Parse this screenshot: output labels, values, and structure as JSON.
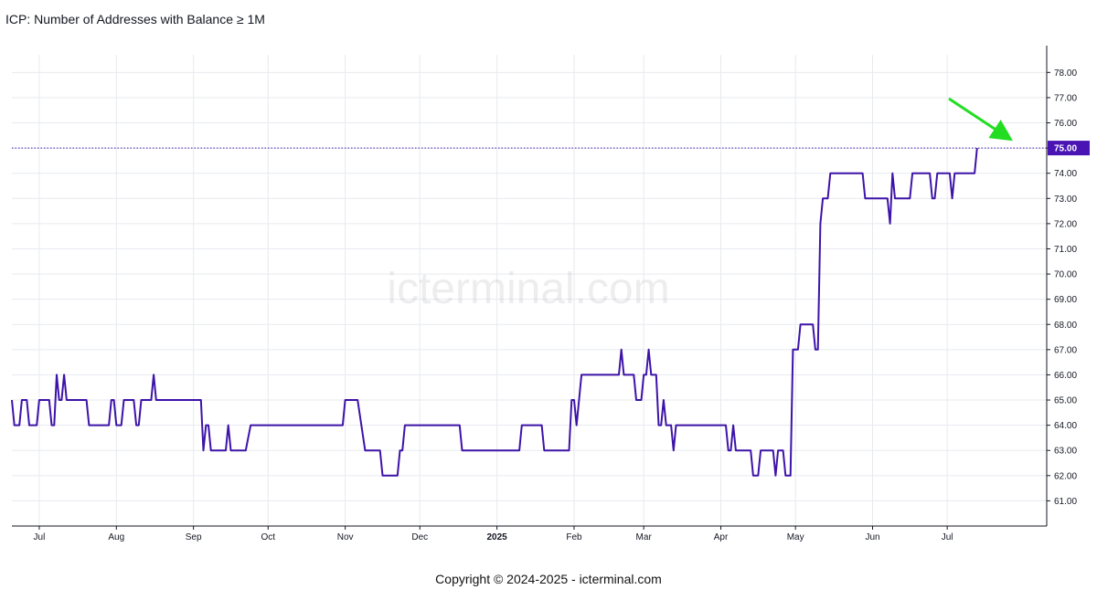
{
  "title": "ICP: Number of Addresses with Balance ≥ 1M",
  "copyright": "Copyright © 2024-2025 - icterminal.com",
  "watermark": "icterminal.com",
  "colors": {
    "line": "#3d13a8",
    "price_label_bg": "#4a14b5",
    "arrow": "#22dd22",
    "grid": "#e8eaef",
    "axis": "#131722"
  },
  "chart_data": {
    "type": "line",
    "title": "ICP: Number of Addresses with Balance ≥ 1M",
    "xlabel": "",
    "ylabel": "",
    "x_ticks": [
      {
        "date": "2024-07-01",
        "label": "Jul"
      },
      {
        "date": "2024-08-01",
        "label": "Aug"
      },
      {
        "date": "2024-09-01",
        "label": "Sep"
      },
      {
        "date": "2024-10-01",
        "label": "Oct"
      },
      {
        "date": "2024-11-01",
        "label": "Nov"
      },
      {
        "date": "2024-12-01",
        "label": "Dec"
      },
      {
        "date": "2025-01-01",
        "label": "2025",
        "bold": true
      },
      {
        "date": "2025-02-01",
        "label": "Feb"
      },
      {
        "date": "2025-03-01",
        "label": "Mar"
      },
      {
        "date": "2025-04-01",
        "label": "Apr"
      },
      {
        "date": "2025-05-01",
        "label": "May"
      },
      {
        "date": "2025-06-01",
        "label": "Jun"
      },
      {
        "date": "2025-07-01",
        "label": "Jul"
      }
    ],
    "y_ticks": [
      "61.00",
      "62.00",
      "63.00",
      "64.00",
      "65.00",
      "66.00",
      "67.00",
      "68.00",
      "69.00",
      "70.00",
      "71.00",
      "72.00",
      "73.00",
      "74.00",
      "75.00",
      "76.00",
      "77.00",
      "78.00"
    ],
    "xlim": [
      "2024-06-20",
      "2025-08-10"
    ],
    "ylim": [
      60.0,
      78.7
    ],
    "last_value_label": "75.00",
    "last_value": 75,
    "grid": true,
    "series": [
      {
        "points": [
          [
            "2024-06-20",
            65
          ],
          [
            "2024-06-21",
            64
          ],
          [
            "2024-06-23",
            64
          ],
          [
            "2024-06-24",
            65
          ],
          [
            "2024-06-26",
            65
          ],
          [
            "2024-06-27",
            64
          ],
          [
            "2024-06-30",
            64
          ],
          [
            "2024-07-01",
            65
          ],
          [
            "2024-07-05",
            65
          ],
          [
            "2024-07-06",
            64
          ],
          [
            "2024-07-07",
            64
          ],
          [
            "2024-07-08",
            66
          ],
          [
            "2024-07-09",
            65
          ],
          [
            "2024-07-10",
            65
          ],
          [
            "2024-07-11",
            66
          ],
          [
            "2024-07-12",
            65
          ],
          [
            "2024-07-20",
            65
          ],
          [
            "2024-07-21",
            64
          ],
          [
            "2024-07-29",
            64
          ],
          [
            "2024-07-30",
            65
          ],
          [
            "2024-07-31",
            65
          ],
          [
            "2024-08-01",
            64
          ],
          [
            "2024-08-03",
            64
          ],
          [
            "2024-08-04",
            65
          ],
          [
            "2024-08-08",
            65
          ],
          [
            "2024-08-09",
            64
          ],
          [
            "2024-08-10",
            64
          ],
          [
            "2024-08-11",
            65
          ],
          [
            "2024-08-15",
            65
          ],
          [
            "2024-08-16",
            66
          ],
          [
            "2024-08-17",
            65
          ],
          [
            "2024-08-31",
            65
          ],
          [
            "2024-09-04",
            65
          ],
          [
            "2024-09-05",
            63
          ],
          [
            "2024-09-06",
            64
          ],
          [
            "2024-09-07",
            64
          ],
          [
            "2024-09-08",
            63
          ],
          [
            "2024-09-14",
            63
          ],
          [
            "2024-09-15",
            64
          ],
          [
            "2024-09-16",
            63
          ],
          [
            "2024-09-22",
            63
          ],
          [
            "2024-09-24",
            64
          ],
          [
            "2024-10-31",
            64
          ],
          [
            "2024-11-01",
            65
          ],
          [
            "2024-11-06",
            65
          ],
          [
            "2024-11-09",
            63
          ],
          [
            "2024-11-15",
            63
          ],
          [
            "2024-11-16",
            62
          ],
          [
            "2024-11-22",
            62
          ],
          [
            "2024-11-23",
            63
          ],
          [
            "2024-11-24",
            63
          ],
          [
            "2024-11-25",
            64
          ],
          [
            "2024-12-17",
            64
          ],
          [
            "2024-12-18",
            63
          ],
          [
            "2025-01-10",
            63
          ],
          [
            "2025-01-11",
            64
          ],
          [
            "2025-01-19",
            64
          ],
          [
            "2025-01-20",
            63
          ],
          [
            "2025-01-30",
            63
          ],
          [
            "2025-01-31",
            65
          ],
          [
            "2025-02-01",
            65
          ],
          [
            "2025-02-02",
            64
          ],
          [
            "2025-02-04",
            66
          ],
          [
            "2025-02-19",
            66
          ],
          [
            "2025-02-20",
            67
          ],
          [
            "2025-02-21",
            66
          ],
          [
            "2025-02-25",
            66
          ],
          [
            "2025-02-26",
            65
          ],
          [
            "2025-02-28",
            65
          ],
          [
            "2025-03-01",
            66
          ],
          [
            "2025-03-02",
            66
          ],
          [
            "2025-03-03",
            67
          ],
          [
            "2025-03-04",
            66
          ],
          [
            "2025-03-06",
            66
          ],
          [
            "2025-03-07",
            64
          ],
          [
            "2025-03-08",
            64
          ],
          [
            "2025-03-09",
            65
          ],
          [
            "2025-03-10",
            64
          ],
          [
            "2025-03-12",
            64
          ],
          [
            "2025-03-13",
            63
          ],
          [
            "2025-03-14",
            64
          ],
          [
            "2025-04-03",
            64
          ],
          [
            "2025-04-04",
            63
          ],
          [
            "2025-04-05",
            63
          ],
          [
            "2025-04-06",
            64
          ],
          [
            "2025-04-07",
            63
          ],
          [
            "2025-04-13",
            63
          ],
          [
            "2025-04-14",
            62
          ],
          [
            "2025-04-16",
            62
          ],
          [
            "2025-04-17",
            63
          ],
          [
            "2025-04-22",
            63
          ],
          [
            "2025-04-23",
            62
          ],
          [
            "2025-04-24",
            63
          ],
          [
            "2025-04-26",
            63
          ],
          [
            "2025-04-27",
            62
          ],
          [
            "2025-04-29",
            62
          ],
          [
            "2025-04-30",
            67
          ],
          [
            "2025-05-02",
            67
          ],
          [
            "2025-05-03",
            68
          ],
          [
            "2025-05-08",
            68
          ],
          [
            "2025-05-09",
            67
          ],
          [
            "2025-05-10",
            67
          ],
          [
            "2025-05-11",
            72
          ],
          [
            "2025-05-12",
            73
          ],
          [
            "2025-05-14",
            73
          ],
          [
            "2025-05-15",
            74
          ],
          [
            "2025-05-28",
            74
          ],
          [
            "2025-05-29",
            73
          ],
          [
            "2025-06-07",
            73
          ],
          [
            "2025-06-08",
            72
          ],
          [
            "2025-06-09",
            74
          ],
          [
            "2025-06-10",
            73
          ],
          [
            "2025-06-16",
            73
          ],
          [
            "2025-06-17",
            74
          ],
          [
            "2025-06-24",
            74
          ],
          [
            "2025-06-25",
            73
          ],
          [
            "2025-06-26",
            73
          ],
          [
            "2025-06-27",
            74
          ],
          [
            "2025-07-02",
            74
          ],
          [
            "2025-07-03",
            73
          ],
          [
            "2025-07-04",
            74
          ],
          [
            "2025-07-12",
            74
          ],
          [
            "2025-07-13",
            75
          ]
        ]
      }
    ]
  }
}
